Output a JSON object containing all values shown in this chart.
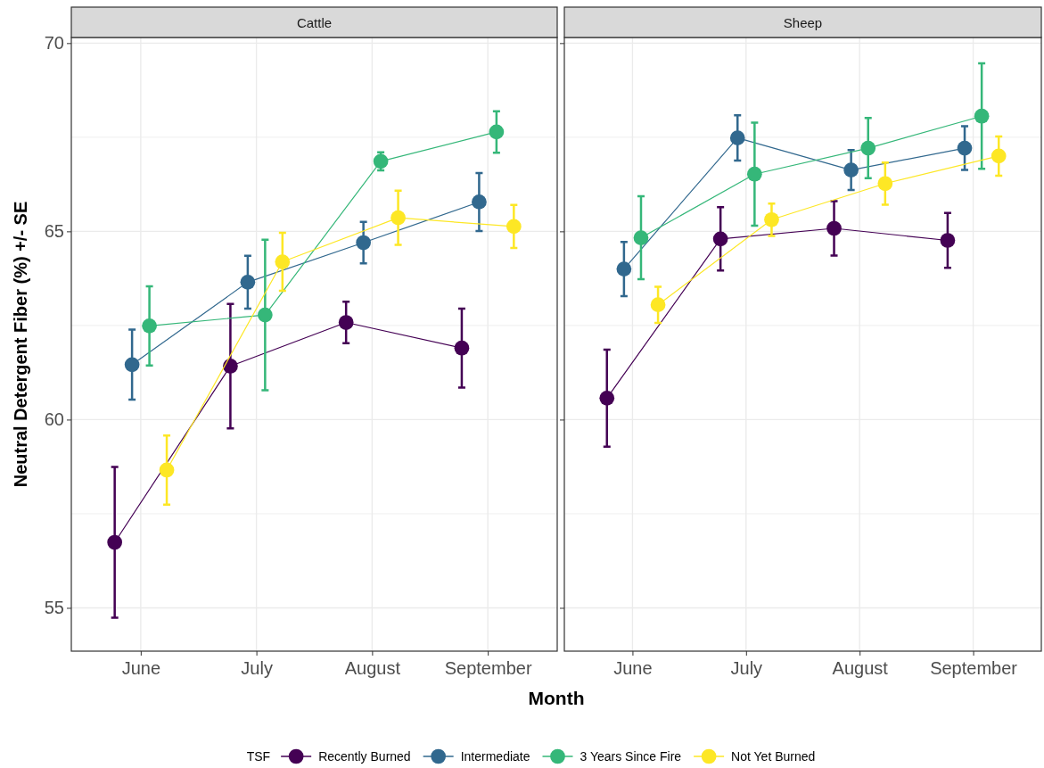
{
  "chart_data": [
    {
      "type": "line",
      "title": "Cattle",
      "xlabel": "Month",
      "ylabel": "Neutral Detergent Fiber (%) +/- SE",
      "legend_title": "TSF",
      "legend": "bottom",
      "grid": true,
      "marker": "circle",
      "categories": [
        "June",
        "July",
        "August",
        "September"
      ],
      "ylim": [
        53.85,
        70.15
      ],
      "yticks": [
        55,
        60,
        65,
        70
      ],
      "series": [
        {
          "name": "Recently Burned",
          "color": "#440154",
          "values": [
            56.74,
            61.42,
            62.58,
            61.9
          ],
          "errors": [
            2.0,
            1.65,
            0.55,
            1.05
          ]
        },
        {
          "name": "Intermediate",
          "color": "#31688e",
          "values": [
            61.46,
            63.65,
            64.7,
            65.78
          ],
          "errors": [
            0.93,
            0.7,
            0.55,
            0.77
          ]
        },
        {
          "name": "3 Years Since Fire",
          "color": "#35b779",
          "values": [
            62.49,
            62.78,
            66.86,
            67.64
          ],
          "errors": [
            1.05,
            2.0,
            0.24,
            0.55
          ]
        },
        {
          "name": "Not Yet Burned",
          "color": "#fde725",
          "values": [
            58.66,
            64.19,
            65.36,
            65.13
          ],
          "errors": [
            0.92,
            0.77,
            0.72,
            0.57
          ]
        }
      ]
    },
    {
      "type": "line",
      "title": "Sheep",
      "grid": true,
      "marker": "circle",
      "tick_labels": "x",
      "categories": [
        "June",
        "July",
        "August",
        "September"
      ],
      "ylim": [
        53.85,
        70.15
      ],
      "yticks": [
        55,
        60,
        65,
        70
      ],
      "series": [
        {
          "color": "#440154",
          "values": [
            60.57,
            64.8,
            65.08,
            64.76
          ],
          "errors": [
            1.29,
            0.84,
            0.72,
            0.73
          ]
        },
        {
          "color": "#31688e",
          "values": [
            64.0,
            67.48,
            66.63,
            67.21
          ],
          "errors": [
            0.72,
            0.6,
            0.53,
            0.58
          ]
        },
        {
          "color": "#35b779",
          "values": [
            64.83,
            66.52,
            67.21,
            68.06
          ],
          "errors": [
            1.1,
            1.37,
            0.8,
            1.4
          ]
        },
        {
          "color": "#fde725",
          "values": [
            63.05,
            65.31,
            66.27,
            67.0
          ],
          "errors": [
            0.48,
            0.43,
            0.56,
            0.52
          ]
        }
      ]
    }
  ]
}
